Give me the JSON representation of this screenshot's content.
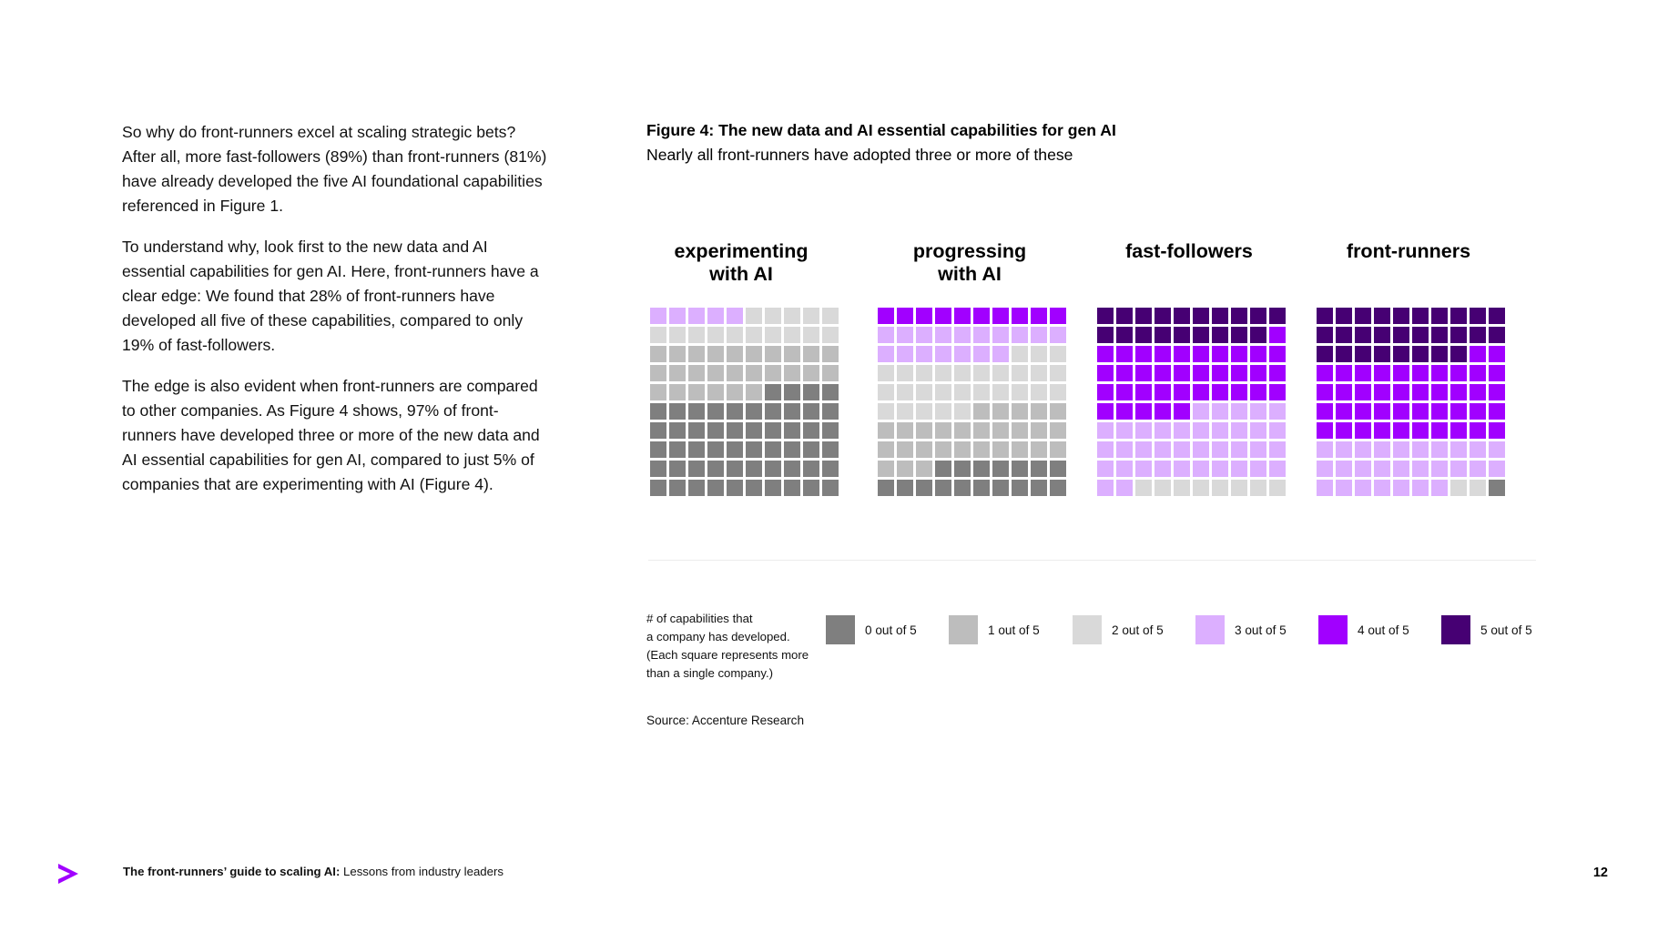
{
  "body": {
    "paragraphs": [
      "So why do front-runners excel at scaling strategic bets? After all, more fast-followers (89%) than front-runners (81%) have already developed the five AI foundational capabilities referenced in Figure 1.",
      "To understand why, look first to the new data and AI essential capabilities for gen AI. Here, front-runners have a clear edge: We found that 28% of front-runners have developed all five of these capabilities, compared to only 19% of fast-followers.",
      "The edge is also evident when front-runners are compared to other companies. As Figure 4 shows, 97% of front-runners have developed three or more of the new data and AI essential capabilities for gen AI, compared to just 5% of companies that are experimenting with AI (Figure 4)."
    ]
  },
  "figure": {
    "title": "Figure 4:  The new data and AI essential capabilities for gen AI",
    "subtitle": "Nearly all front-runners have adopted three or more of these"
  },
  "chart_data": {
    "type": "waffle",
    "title": "Figure 4:  The new data and AI essential capabilities for gen AI",
    "subtitle": "Nearly all front-runners have adopted three or more of these",
    "grid": {
      "columns": 10,
      "rows": 10
    },
    "fill_order": "top-left to bottom-right, highest capability count first",
    "categories": [
      "5 out of 5",
      "4 out of 5",
      "3 out of 5",
      "2 out of 5",
      "1 out of 5",
      "0 out of 5"
    ],
    "colors": {
      "5 out of 5": "#460073",
      "4 out of 5": "#a100ff",
      "3 out of 5": "#dcafff",
      "2 out of 5": "#d9d9d9",
      "1 out of 5": "#bdbdbd",
      "0 out of 5": "#7f7f7f"
    },
    "series": [
      {
        "name": "experimenting\nwith AI",
        "counts": {
          "5 out of 5": 0,
          "4 out of 5": 0,
          "3 out of 5": 5,
          "2 out of 5": 15,
          "1 out of 5": 26,
          "0 out of 5": 54
        }
      },
      {
        "name": "progressing\nwith AI",
        "counts": {
          "5 out of 5": 0,
          "4 out of 5": 10,
          "3 out of 5": 17,
          "2 out of 5": 28,
          "1 out of 5": 28,
          "0 out of 5": 17
        }
      },
      {
        "name": "fast-followers",
        "counts": {
          "5 out of 5": 19,
          "4 out of 5": 36,
          "3 out of 5": 37,
          "2 out of 5": 8,
          "1 out of 5": 0,
          "0 out of 5": 0
        }
      },
      {
        "name": "front-runners",
        "counts": {
          "5 out of 5": 28,
          "4 out of 5": 42,
          "3 out of 5": 27,
          "2 out of 5": 2,
          "1 out of 5": 0,
          "0 out of 5": 1
        }
      }
    ]
  },
  "legend": {
    "note": "# of capabilities that a company has developed. (Each square represents more than a single company.)",
    "note_lines": [
      "# of capabilities that",
      "a company has developed.",
      "(Each square represents more",
      "than a single company.)"
    ],
    "items": [
      {
        "label": "0 out of 5",
        "color": "#7f7f7f"
      },
      {
        "label": "1 out of 5",
        "color": "#bdbdbd"
      },
      {
        "label": "2 out of 5",
        "color": "#d9d9d9"
      },
      {
        "label": "3 out of 5",
        "color": "#dcafff"
      },
      {
        "label": "4 out of 5",
        "color": "#a100ff"
      },
      {
        "label": "5 out of 5",
        "color": "#460073"
      }
    ]
  },
  "source": "Source: Accenture Research",
  "footer": {
    "title_bold": "The front-runners’ guide to scaling AI:",
    "title_rest": " Lessons from industry leaders",
    "page_number": "12",
    "logo_color": "#a100ff"
  }
}
